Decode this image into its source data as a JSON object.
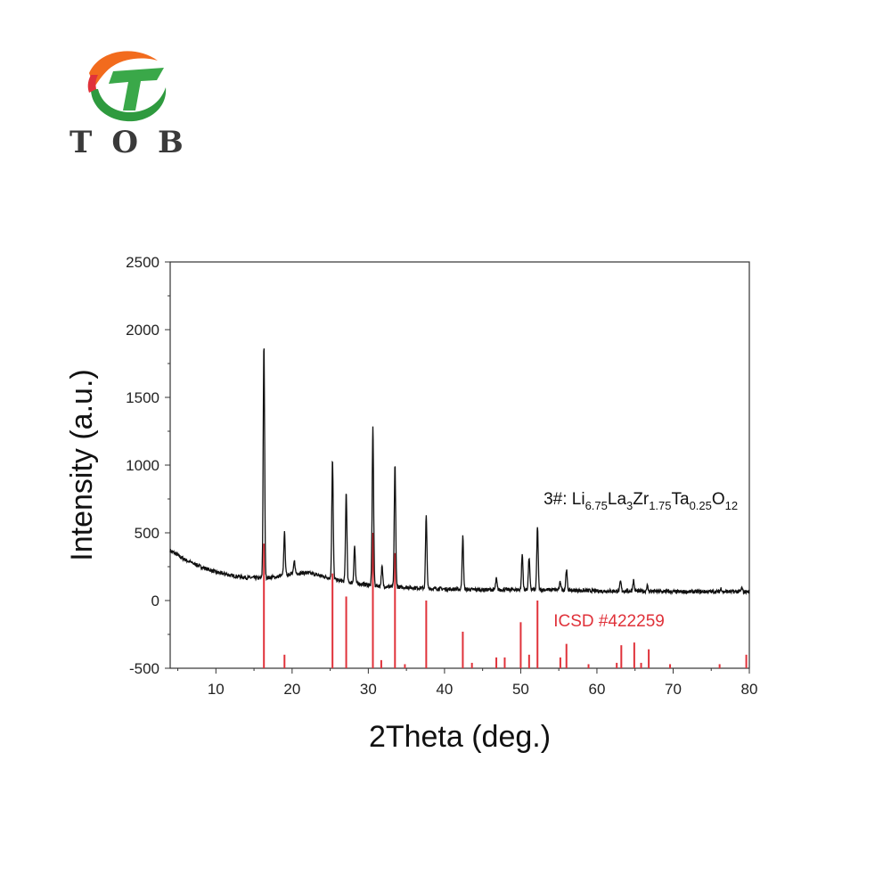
{
  "logo": {
    "text": "TOB",
    "letters": [
      "T",
      "O",
      "B"
    ]
  },
  "chart_data": {
    "type": "line",
    "xlabel": "2Theta (deg.)",
    "ylabel": "Intensity (a.u.)",
    "xlim": [
      4,
      80
    ],
    "ylim": [
      -500,
      2500
    ],
    "xticks": [
      10,
      20,
      30,
      40,
      50,
      60,
      70,
      80
    ],
    "yticks": [
      -500,
      0,
      500,
      1000,
      1500,
      2000,
      2500
    ],
    "grid": false,
    "annotations": [
      {
        "text": "3#: Li6.75La3Zr1.75Ta0.25O12",
        "formula": [
          [
            "3#: Li",
            "n"
          ],
          [
            "6.75",
            "s"
          ],
          [
            "La",
            "n"
          ],
          [
            "3",
            "s"
          ],
          [
            "Zr",
            "n"
          ],
          [
            "1.75",
            "s"
          ],
          [
            "Ta",
            "n"
          ],
          [
            "0.25",
            "s"
          ],
          [
            "O",
            "n"
          ],
          [
            "12",
            "s"
          ]
        ],
        "color": "#111111",
        "x": 53,
        "y": 710
      },
      {
        "text": "ICSD #422259",
        "color": "#e0323a",
        "x": 54.3,
        "y": 0
      }
    ],
    "series": [
      {
        "kind": "line",
        "color": "#111111",
        "baseline": [
          [
            4,
            370
          ],
          [
            6,
            300
          ],
          [
            8,
            250
          ],
          [
            10,
            210
          ],
          [
            12,
            185
          ],
          [
            14,
            170
          ],
          [
            16,
            165
          ],
          [
            18,
            175
          ],
          [
            20,
            200
          ],
          [
            22,
            205
          ],
          [
            24,
            180
          ],
          [
            26,
            150
          ],
          [
            28,
            130
          ],
          [
            30,
            115
          ],
          [
            32,
            105
          ],
          [
            34,
            100
          ],
          [
            36,
            95
          ],
          [
            38,
            90
          ],
          [
            40,
            85
          ],
          [
            45,
            80
          ],
          [
            50,
            80
          ],
          [
            55,
            80
          ],
          [
            60,
            70
          ],
          [
            65,
            70
          ],
          [
            70,
            65
          ],
          [
            75,
            65
          ],
          [
            80,
            65
          ]
        ],
        "peaks": [
          [
            16.3,
            1890
          ],
          [
            19.0,
            500
          ],
          [
            20.3,
            290
          ],
          [
            25.3,
            1040
          ],
          [
            27.1,
            800
          ],
          [
            28.2,
            400
          ],
          [
            30.6,
            1290
          ],
          [
            31.8,
            250
          ],
          [
            33.5,
            1000
          ],
          [
            37.6,
            620
          ],
          [
            42.4,
            470
          ],
          [
            46.8,
            160
          ],
          [
            50.2,
            340
          ],
          [
            51.1,
            320
          ],
          [
            52.2,
            550
          ],
          [
            55.2,
            140
          ],
          [
            56.0,
            230
          ],
          [
            63.1,
            140
          ],
          [
            64.8,
            150
          ],
          [
            66.6,
            110
          ],
          [
            76.3,
            90
          ],
          [
            79.0,
            90
          ]
        ]
      },
      {
        "kind": "stick",
        "color": "#e0323a",
        "values": [
          [
            16.3,
            420
          ],
          [
            19.0,
            -400
          ],
          [
            25.3,
            200
          ],
          [
            27.1,
            30
          ],
          [
            30.6,
            500
          ],
          [
            31.7,
            -440
          ],
          [
            33.5,
            350
          ],
          [
            34.8,
            -470
          ],
          [
            37.6,
            0
          ],
          [
            42.4,
            -230
          ],
          [
            43.6,
            -460
          ],
          [
            46.8,
            -420
          ],
          [
            47.9,
            -420
          ],
          [
            50.0,
            -160
          ],
          [
            51.1,
            -400
          ],
          [
            52.2,
            0
          ],
          [
            55.2,
            -420
          ],
          [
            56.0,
            -320
          ],
          [
            58.9,
            -470
          ],
          [
            62.6,
            -460
          ],
          [
            63.2,
            -330
          ],
          [
            64.9,
            -310
          ],
          [
            65.8,
            -460
          ],
          [
            66.8,
            -360
          ],
          [
            69.6,
            -470
          ],
          [
            76.1,
            -470
          ],
          [
            79.6,
            -400
          ]
        ]
      }
    ]
  }
}
